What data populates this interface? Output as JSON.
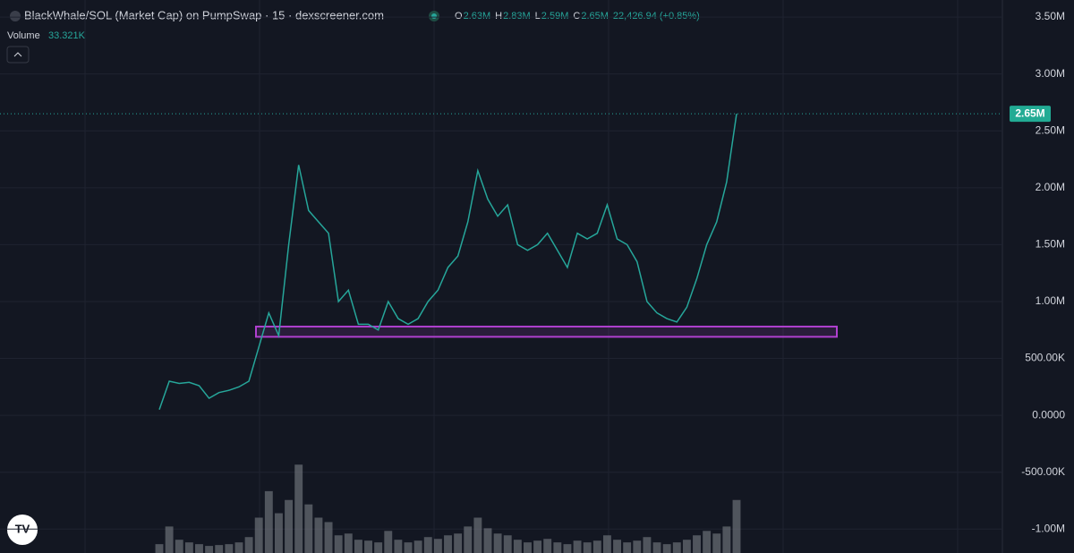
{
  "chart_data": {
    "type": "line",
    "title": "BlackWhale/SOL (Market Cap) on PumpSwap · 15 · dexscreener.com",
    "ohlc_labels": [
      "O",
      "H",
      "L",
      "C"
    ],
    "ohlc_values": [
      "2.63M",
      "2.83M",
      "2.59M",
      "2.65M"
    ],
    "change": "22,426.94 (+0.85%)",
    "volume_label": "Volume",
    "volume_value": "33.321K",
    "last_price": {
      "value": 2650000,
      "label": "2.65M"
    },
    "series": [
      {
        "name": "Market Cap",
        "color": "#26a69a",
        "values": [
          50000,
          300000,
          280000,
          290000,
          260000,
          150000,
          200000,
          220000,
          250000,
          300000,
          600000,
          900000,
          700000,
          1500000,
          2200000,
          1800000,
          1700000,
          1600000,
          1000000,
          1100000,
          800000,
          800000,
          750000,
          1000000,
          850000,
          800000,
          850000,
          1000000,
          1100000,
          1300000,
          1400000,
          1700000,
          2150000,
          1900000,
          1750000,
          1850000,
          1500000,
          1450000,
          1500000,
          1600000,
          1450000,
          1300000,
          1600000,
          1550000,
          1600000,
          1850000,
          1550000,
          1500000,
          1350000,
          1000000,
          900000,
          850000,
          820000,
          950000,
          1200000,
          1500000,
          1700000,
          2050000,
          2650000
        ]
      },
      {
        "name": "Volume",
        "color": "#7a7f86",
        "axis": "y2",
        "values": [
          10,
          30,
          15,
          12,
          10,
          8,
          9,
          10,
          12,
          18,
          40,
          70,
          45,
          60,
          100,
          55,
          40,
          35,
          20,
          22,
          15,
          14,
          12,
          25,
          15,
          12,
          14,
          18,
          16,
          20,
          22,
          30,
          40,
          28,
          22,
          20,
          15,
          12,
          14,
          16,
          12,
          10,
          14,
          12,
          14,
          20,
          15,
          12,
          14,
          18,
          12,
          10,
          12,
          15,
          20,
          25,
          22,
          30,
          60
        ]
      }
    ],
    "zone": [
      690000,
      780000
    ],
    "zone_color": "#b040d0",
    "ylim": [
      -1210000,
      3650000
    ],
    "y2lim": [
      0,
      160
    ],
    "yticks": [
      {
        "value": 3500000,
        "label": "3.50M"
      },
      {
        "value": 3000000,
        "label": "3.00M"
      },
      {
        "value": 2500000,
        "label": "2.50M"
      },
      {
        "value": 2000000,
        "label": "2.00M"
      },
      {
        "value": 1500000,
        "label": "1.50M"
      },
      {
        "value": 1000000,
        "label": "1.00M"
      },
      {
        "value": 500000,
        "label": "500.00K"
      },
      {
        "value": 0,
        "label": "0.0000"
      },
      {
        "value": -500000,
        "label": "-500.00K"
      },
      {
        "value": -1000000,
        "label": "-1.00M"
      }
    ],
    "grid": true
  }
}
